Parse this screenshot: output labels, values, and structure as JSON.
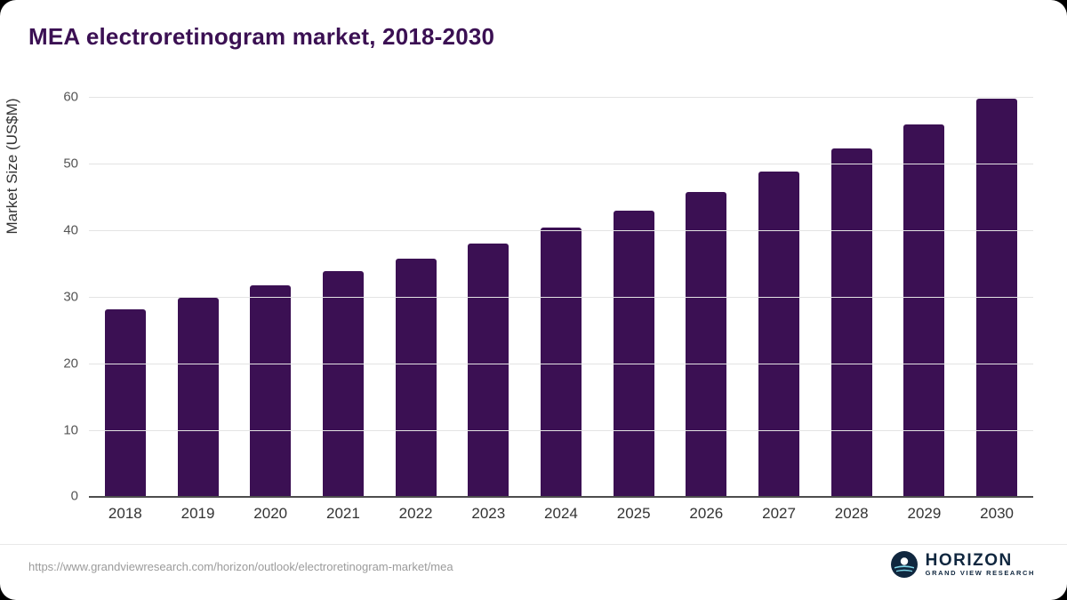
{
  "chart_data": {
    "type": "bar",
    "title": "MEA electroretinogram market, 2018-2030",
    "xlabel": "",
    "ylabel": "Market Size (US$M)",
    "categories": [
      "2018",
      "2019",
      "2020",
      "2021",
      "2022",
      "2023",
      "2024",
      "2025",
      "2026",
      "2027",
      "2028",
      "2029",
      "2030"
    ],
    "values": [
      28.3,
      30.0,
      31.9,
      34.0,
      35.9,
      38.1,
      40.5,
      43.1,
      45.9,
      49.0,
      52.4,
      56.0,
      59.9
    ],
    "ylim": [
      0,
      60
    ],
    "yticks": [
      0,
      10,
      20,
      30,
      40,
      50,
      60
    ],
    "grid": "horizontal",
    "legend_position": "none",
    "bar_color": "#3b1053"
  },
  "footer": {
    "source_url": "https://www.grandviewresearch.com/horizon/outlook/electroretinogram-market/mea",
    "logo_name": "HORIZON",
    "logo_subtitle": "GRAND VIEW RESEARCH"
  },
  "colors": {
    "title": "#3b1053",
    "bar": "#3b1053",
    "gridline": "#e3e3e3",
    "axis_text": "#555555",
    "logo_navy": "#10273f"
  }
}
